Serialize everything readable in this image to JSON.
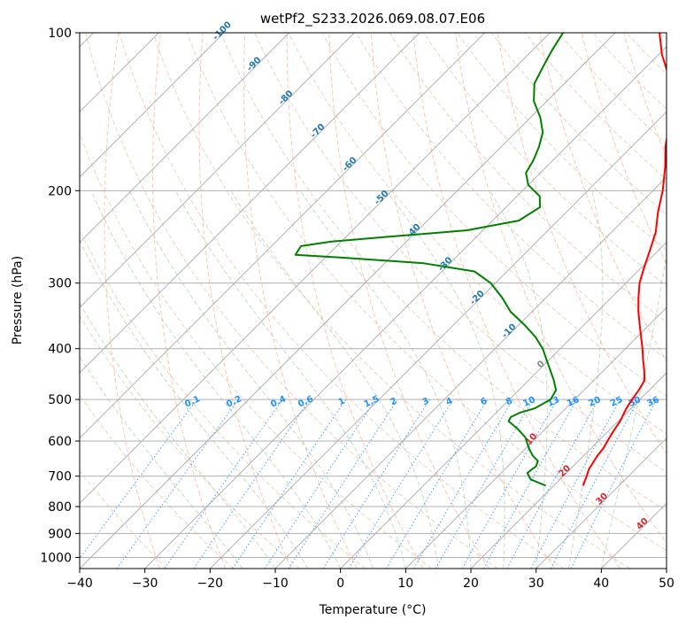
{
  "chart_data": {
    "type": "line",
    "title": "wetPf2_S233.2026.069.08.07.E06",
    "xlabel": "Temperature (°C)",
    "ylabel": "Pressure (hPa)",
    "xlim": [
      -40,
      50
    ],
    "ylim": [
      1050,
      100
    ],
    "y_scale": "log",
    "x_ticks": [
      -40,
      -30,
      -20,
      -10,
      0,
      10,
      20,
      30,
      40,
      50
    ],
    "x_tick_labels": [
      "−40",
      "−30",
      "−20",
      "−10",
      "0",
      "10",
      "20",
      "30",
      "40",
      "50"
    ],
    "y_ticks": [
      100,
      200,
      300,
      400,
      500,
      600,
      700,
      800,
      900,
      1000
    ],
    "y_tick_labels": [
      "100",
      "200",
      "300",
      "400",
      "500",
      "600",
      "700",
      "800",
      "900",
      "1000"
    ],
    "grid": true,
    "colors": {
      "temperature": "#ff0000",
      "dewpoint": "#008000",
      "isotherm_label": "#1f77b4",
      "mixing_ratio": "#1e90ff",
      "dry_adiabat": "#d2b48c",
      "moist_adiabat": "#98c898",
      "isotherm_warm_label": "#d62728"
    },
    "series": [
      {
        "points": [
          {
            "p": 730,
            "t": 24.5
          },
          {
            "p": 700,
            "t": 23.6
          },
          {
            "p": 680,
            "t": 22.9
          },
          {
            "p": 660,
            "t": 22.5
          },
          {
            "p": 640,
            "t": 22.1
          },
          {
            "p": 620,
            "t": 21.9
          },
          {
            "p": 600,
            "t": 21.4
          },
          {
            "p": 575,
            "t": 20.8
          },
          {
            "p": 550,
            "t": 20.3
          },
          {
            "p": 520,
            "t": 19.3
          },
          {
            "p": 500,
            "t": 18.8
          },
          {
            "p": 480,
            "t": 18.4
          },
          {
            "p": 460,
            "t": 17.8
          },
          {
            "p": 440,
            "t": 16.2
          },
          {
            "p": 420,
            "t": 14.4
          },
          {
            "p": 400,
            "t": 12.6
          },
          {
            "p": 380,
            "t": 10.6
          },
          {
            "p": 360,
            "t": 8.5
          },
          {
            "p": 340,
            "t": 6.3
          },
          {
            "p": 320,
            "t": 4.2
          },
          {
            "p": 300,
            "t": 2.1
          },
          {
            "p": 280,
            "t": 0.4
          },
          {
            "p": 260,
            "t": -1.3
          },
          {
            "p": 240,
            "t": -3.2
          },
          {
            "p": 220,
            "t": -5.9
          },
          {
            "p": 200,
            "t": -8.5
          },
          {
            "p": 180,
            "t": -11.8
          },
          {
            "p": 165,
            "t": -14.8
          },
          {
            "p": 150,
            "t": -17.6
          },
          {
            "p": 140,
            "t": -20.0
          },
          {
            "p": 130,
            "t": -22.5
          },
          {
            "p": 120,
            "t": -25.5
          },
          {
            "p": 110,
            "t": -29.5
          },
          {
            "p": 100,
            "t": -33.2
          }
        ]
      },
      {
        "points": [
          {
            "p": 730,
            "t": 18.8
          },
          {
            "p": 710,
            "t": 15.5
          },
          {
            "p": 690,
            "t": 14.0
          },
          {
            "p": 670,
            "t": 14.3
          },
          {
            "p": 655,
            "t": 13.8
          },
          {
            "p": 640,
            "t": 12.2
          },
          {
            "p": 620,
            "t": 10.5
          },
          {
            "p": 590,
            "t": 8.2
          },
          {
            "p": 570,
            "t": 5.9
          },
          {
            "p": 550,
            "t": 3.2
          },
          {
            "p": 540,
            "t": 2.9
          },
          {
            "p": 530,
            "t": 3.6
          },
          {
            "p": 520,
            "t": 5.2
          },
          {
            "p": 500,
            "t": 6.3
          },
          {
            "p": 480,
            "t": 5.7
          },
          {
            "p": 460,
            "t": 3.9
          },
          {
            "p": 440,
            "t": 1.8
          },
          {
            "p": 420,
            "t": -0.4
          },
          {
            "p": 400,
            "t": -2.7
          },
          {
            "p": 380,
            "t": -5.6
          },
          {
            "p": 360,
            "t": -9.2
          },
          {
            "p": 340,
            "t": -13.3
          },
          {
            "p": 320,
            "t": -16.7
          },
          {
            "p": 300,
            "t": -20.7
          },
          {
            "p": 285,
            "t": -25.0
          },
          {
            "p": 275,
            "t": -34.0
          },
          {
            "p": 268,
            "t": -48.0
          },
          {
            "p": 265,
            "t": -55.0
          },
          {
            "p": 255,
            "t": -55.5
          },
          {
            "p": 250,
            "t": -51.5
          },
          {
            "p": 245,
            "t": -44.0
          },
          {
            "p": 238,
            "t": -32.5
          },
          {
            "p": 228,
            "t": -26.0
          },
          {
            "p": 215,
            "t": -24.8
          },
          {
            "p": 205,
            "t": -26.5
          },
          {
            "p": 195,
            "t": -30.0
          },
          {
            "p": 185,
            "t": -32.2
          },
          {
            "p": 175,
            "t": -33.0
          },
          {
            "p": 165,
            "t": -34.2
          },
          {
            "p": 155,
            "t": -35.8
          },
          {
            "p": 145,
            "t": -38.5
          },
          {
            "p": 135,
            "t": -42.0
          },
          {
            "p": 125,
            "t": -44.6
          },
          {
            "p": 115,
            "t": -46.0
          },
          {
            "p": 108,
            "t": -47.0
          },
          {
            "p": 100,
            "t": -48.0
          }
        ]
      }
    ],
    "isotherm_labels": [
      "-100",
      "-90",
      "-80",
      "-70",
      "-60",
      "-50",
      "-40",
      "-30",
      "-20",
      "-10",
      "0",
      "10",
      "20",
      "30",
      "40"
    ],
    "mixing_ratio_labels": [
      "0.1",
      "0.2",
      "0.4",
      "0.6",
      "1",
      "1.5",
      "2",
      "3",
      "4",
      "6",
      "8",
      "10",
      "13",
      "16",
      "20",
      "25",
      "30",
      "36"
    ]
  }
}
